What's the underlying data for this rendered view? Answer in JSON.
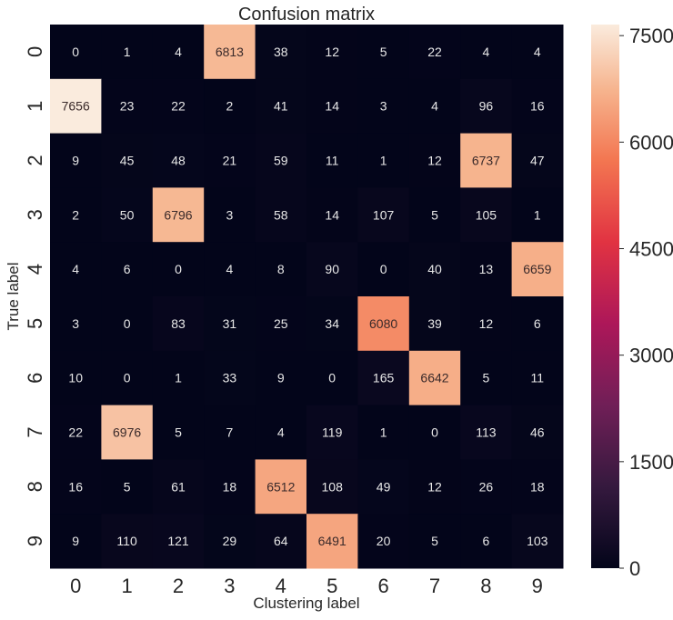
{
  "chart_data": {
    "type": "heatmap",
    "title": "Confusion matrix",
    "xlabel": "Clustering label",
    "ylabel": "True label",
    "x_categories": [
      "0",
      "1",
      "2",
      "3",
      "4",
      "5",
      "6",
      "7",
      "8",
      "9"
    ],
    "y_categories": [
      "0",
      "1",
      "2",
      "3",
      "4",
      "5",
      "6",
      "7",
      "8",
      "9"
    ],
    "values": [
      [
        0,
        1,
        4,
        6813,
        38,
        12,
        5,
        22,
        4,
        4
      ],
      [
        7656,
        23,
        22,
        2,
        41,
        14,
        3,
        4,
        96,
        16
      ],
      [
        9,
        45,
        48,
        21,
        59,
        11,
        1,
        12,
        6737,
        47
      ],
      [
        2,
        50,
        6796,
        3,
        58,
        14,
        107,
        5,
        105,
        1
      ],
      [
        4,
        6,
        0,
        4,
        8,
        90,
        0,
        40,
        13,
        6659
      ],
      [
        3,
        0,
        83,
        31,
        25,
        34,
        6080,
        39,
        12,
        6
      ],
      [
        10,
        0,
        1,
        33,
        9,
        0,
        165,
        6642,
        5,
        11
      ],
      [
        22,
        6976,
        5,
        7,
        4,
        119,
        1,
        0,
        113,
        46
      ],
      [
        16,
        5,
        61,
        18,
        6512,
        108,
        49,
        12,
        26,
        18
      ],
      [
        9,
        110,
        121,
        29,
        64,
        6491,
        20,
        5,
        6,
        103
      ]
    ],
    "colorbar": {
      "range": [
        0,
        7656
      ],
      "ticks": [
        "0",
        "1500",
        "3000",
        "4500",
        "6000",
        "7500"
      ],
      "tick_values": [
        0,
        1500,
        3000,
        4500,
        6000,
        7500
      ],
      "colormap": "rocket"
    },
    "colors": {
      "low": "#03051a",
      "high": "#faebdd"
    }
  }
}
